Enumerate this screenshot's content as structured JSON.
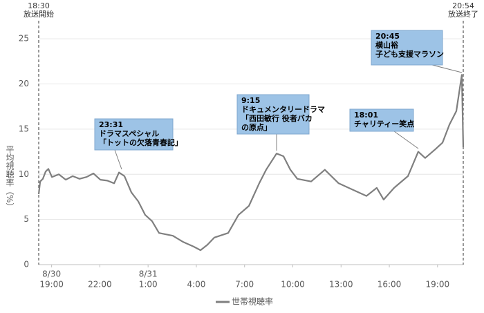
{
  "chart_data": {
    "type": "line",
    "y_label": "平均視聴率（%）",
    "x": [
      0,
      0.09,
      0.26,
      0.43,
      0.6,
      0.82,
      1.25,
      1.68,
      2.11,
      2.54,
      2.97,
      3.4,
      3.83,
      4.26,
      4.69,
      4.99,
      5.33,
      5.76,
      6.19,
      6.62,
      7.05,
      7.48,
      8.34,
      8.99,
      9.63,
      10.06,
      10.49,
      10.92,
      11.78,
      12.42,
      13.07,
      13.71,
      14.14,
      14.79,
      15.22,
      15.65,
      16.08,
      16.94,
      17.79,
      18.65,
      19.52,
      20.38,
      21.02,
      21.45,
      22.1,
      22.96,
      23.6,
      24.03,
      24.68,
      25.11,
      25.54,
      25.97,
      26.31,
      26.4
    ],
    "series": [
      {
        "name": "世帯視聴率",
        "color": "#7f7f7f",
        "values": [
          7.8,
          9.2,
          9.5,
          10.3,
          10.6,
          9.7,
          10.0,
          9.4,
          9.8,
          9.5,
          9.7,
          10.1,
          9.4,
          9.3,
          9.0,
          10.2,
          9.8,
          8.0,
          7.0,
          5.5,
          4.8,
          3.5,
          3.2,
          2.5,
          2.0,
          1.6,
          2.2,
          3.0,
          3.5,
          5.5,
          6.5,
          9.0,
          10.5,
          12.3,
          12.0,
          10.5,
          9.5,
          9.2,
          10.5,
          9.0,
          8.3,
          7.6,
          8.5,
          7.2,
          8.5,
          9.8,
          12.5,
          11.8,
          12.8,
          13.5,
          15.5,
          17.0,
          21.0,
          13.0
        ]
      }
    ],
    "xlim": [
      0,
      26.4
    ],
    "xticks": [
      {
        "value": 0.5,
        "label": "19:00"
      },
      {
        "value": 3.5,
        "label": "22:00"
      },
      {
        "value": 6.5,
        "label": "1:00"
      },
      {
        "value": 9.5,
        "label": "4:00"
      },
      {
        "value": 12.5,
        "label": "7:00"
      },
      {
        "value": 15.5,
        "label": "10:00"
      },
      {
        "value": 18.5,
        "label": "13:00"
      },
      {
        "value": 21.5,
        "label": "16:00"
      },
      {
        "value": 24.5,
        "label": "19:00"
      }
    ],
    "x_date_labels": [
      {
        "value": 0.5,
        "label": "8/30"
      },
      {
        "value": 6.5,
        "label": "8/31"
      }
    ],
    "ylim": [
      0,
      27
    ],
    "yticks": [
      0,
      5,
      10,
      15,
      20,
      25
    ],
    "grid": true,
    "markers": [
      {
        "value": 0,
        "lines": [
          "18:30",
          "放送開始"
        ]
      },
      {
        "value": 26.4,
        "lines": [
          "20:54",
          "放送終了"
        ]
      }
    ],
    "annotations": [
      {
        "lines": [
          "23:31",
          "ドラマスペシャル",
          "「トットの欠落青春記」"
        ]
      },
      {
        "lines": [
          "9:15",
          "ドキュメンタリードラマ",
          "「西田敏行 役者バカ",
          "の原点」"
        ]
      },
      {
        "lines": [
          "18:01",
          "チャリティー笑点"
        ]
      },
      {
        "lines": [
          "20:45",
          "横山裕",
          "子ども支援マラソン"
        ]
      }
    ]
  }
}
